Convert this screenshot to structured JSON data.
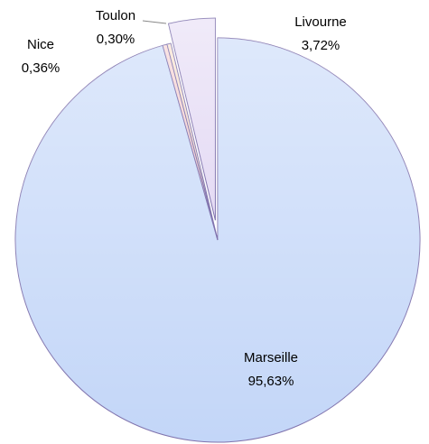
{
  "chart_data": {
    "type": "pie",
    "categories": [
      "Marseille",
      "Nice",
      "Toulon",
      "Livourne"
    ],
    "values": [
      95.63,
      0.36,
      0.3,
      3.72
    ],
    "value_labels": [
      "95,63%",
      "0,36%",
      "0,30%",
      "3,72%"
    ],
    "colors": [
      "#c3d6f8",
      "#f4cccc",
      "#f6dcc6",
      "#e4daf4"
    ]
  }
}
